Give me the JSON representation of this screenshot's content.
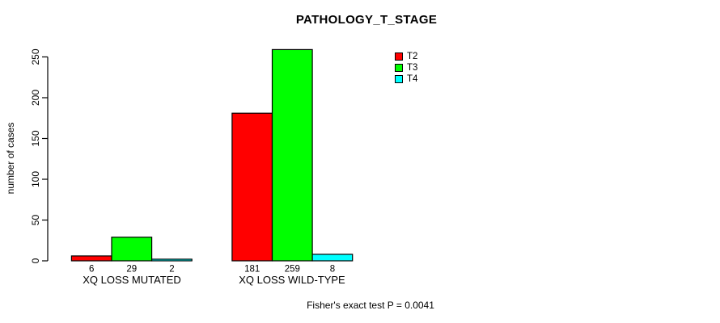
{
  "title": "PATHOLOGY_T_STAGE",
  "footer": "Fisher's exact test P = 0.0041",
  "chart_data": {
    "type": "bar",
    "title": "PATHOLOGY_T_STAGE",
    "xlabel": "",
    "ylabel": "number of cases",
    "ylim": [
      0,
      250
    ],
    "yticks": [
      0,
      50,
      100,
      150,
      200,
      250
    ],
    "categories": [
      "XQ LOSS MUTATED",
      "XQ LOSS WILD-TYPE"
    ],
    "series": [
      {
        "name": "T2",
        "color": "#ff0000",
        "values": [
          6,
          181
        ]
      },
      {
        "name": "T3",
        "color": "#00ff00",
        "values": [
          29,
          259
        ]
      },
      {
        "name": "T4",
        "color": "#00ffff",
        "values": [
          2,
          8
        ]
      }
    ],
    "bar_value_labels_shown": true,
    "legend_position": "top-right",
    "grid": false,
    "bar_border_color": "#000000",
    "annotation": "Fisher's exact test P = 0.0041"
  }
}
